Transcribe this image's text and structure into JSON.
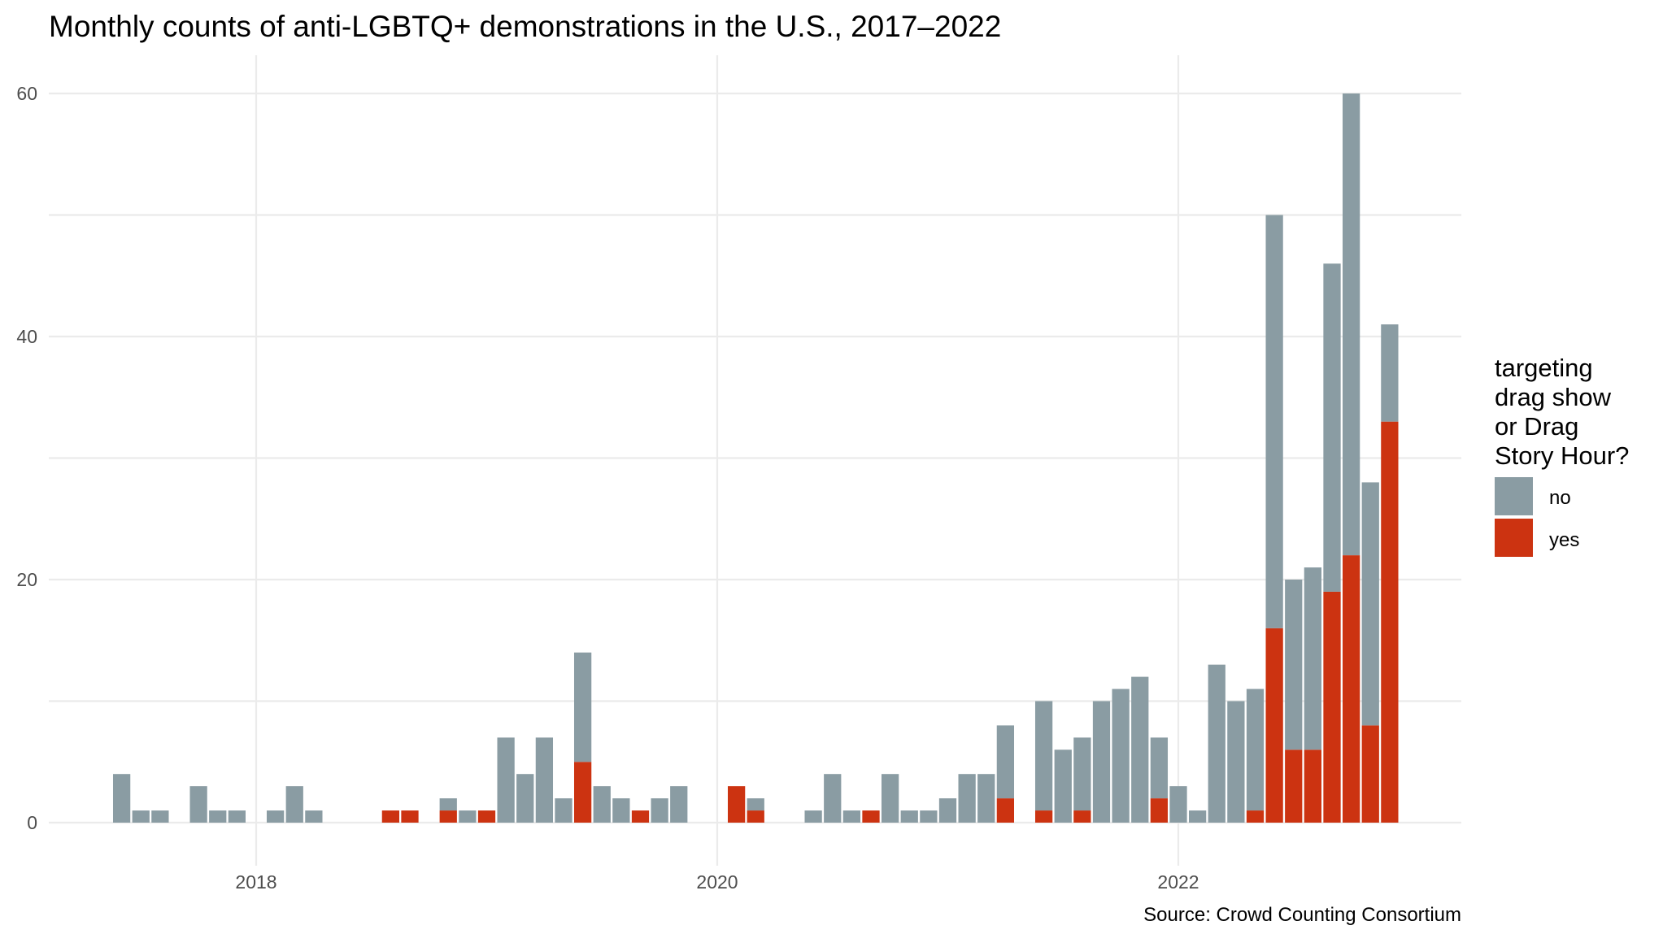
{
  "chart_data": {
    "type": "bar",
    "stacked": true,
    "title": "Monthly counts of anti-LGBTQ+ demonstrations in the U.S., 2017–2022",
    "caption": "Source: Crowd Counting Consortium",
    "xlabel": "",
    "ylabel": "",
    "ylim": [
      0,
      60
    ],
    "yticks": [
      "0",
      "20",
      "40",
      "60"
    ],
    "xticks": [
      "2018",
      "2020",
      "2022"
    ],
    "grid": true,
    "legend": {
      "title_lines": [
        "targeting",
        "drag show",
        "or Drag",
        "Story Hour?"
      ],
      "placement": "right"
    },
    "x": [
      "2017-06",
      "2017-07",
      "2017-08",
      "2017-10",
      "2017-11",
      "2017-12",
      "2018-02",
      "2018-03",
      "2018-04",
      "2018-08",
      "2018-09",
      "2018-11",
      "2018-12",
      "2019-01",
      "2019-02",
      "2019-03",
      "2019-04",
      "2019-05",
      "2019-06",
      "2019-07",
      "2019-08",
      "2019-09",
      "2019-10",
      "2019-11",
      "2020-02",
      "2020-03",
      "2020-06",
      "2020-07",
      "2020-08",
      "2020-09",
      "2020-10",
      "2020-11",
      "2020-12",
      "2021-01",
      "2021-02",
      "2021-03",
      "2021-04",
      "2021-06",
      "2021-07",
      "2021-08",
      "2021-09",
      "2021-10",
      "2021-11",
      "2021-12",
      "2022-01",
      "2022-02",
      "2022-03",
      "2022-04",
      "2022-05",
      "2022-06",
      "2022-07",
      "2022-08",
      "2022-09",
      "2022-10",
      "2022-11",
      "2022-12"
    ],
    "series": [
      {
        "name": "no",
        "color": "#8a9ca3",
        "values": [
          4,
          1,
          1,
          3,
          1,
          1,
          1,
          3,
          1,
          0,
          0,
          1,
          1,
          0,
          7,
          4,
          7,
          2,
          9,
          3,
          2,
          0,
          2,
          3,
          0,
          1,
          1,
          4,
          1,
          0,
          4,
          1,
          1,
          2,
          4,
          4,
          6,
          9,
          6,
          6,
          10,
          11,
          12,
          5,
          3,
          1,
          13,
          10,
          10,
          34,
          14,
          15,
          27,
          38,
          20,
          8
        ]
      },
      {
        "name": "yes",
        "color": "#cc3311",
        "values": [
          0,
          0,
          0,
          0,
          0,
          0,
          0,
          0,
          0,
          1,
          1,
          1,
          0,
          1,
          0,
          0,
          0,
          0,
          5,
          0,
          0,
          1,
          0,
          0,
          3,
          1,
          0,
          0,
          0,
          1,
          0,
          0,
          0,
          0,
          0,
          0,
          2,
          1,
          0,
          1,
          0,
          0,
          0,
          2,
          0,
          0,
          0,
          0,
          1,
          16,
          6,
          6,
          19,
          22,
          8,
          33
        ]
      }
    ]
  }
}
